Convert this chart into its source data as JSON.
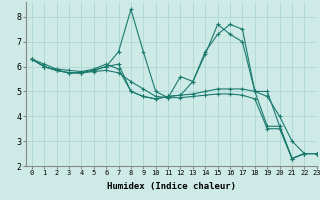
{
  "xlabel": "Humidex (Indice chaleur)",
  "ylabel": "",
  "bg_color": "#ceeae6",
  "grid_color": "#a8d5d0",
  "line_color": "#1a7a6e",
  "xlim": [
    -0.5,
    23
  ],
  "ylim": [
    2,
    8.6
  ],
  "xticks": [
    0,
    1,
    2,
    3,
    4,
    5,
    6,
    7,
    8,
    9,
    10,
    11,
    12,
    13,
    14,
    15,
    16,
    17,
    18,
    19,
    20,
    21,
    22,
    23
  ],
  "yticks": [
    2,
    3,
    4,
    5,
    6,
    7,
    8
  ],
  "series": [
    [
      6.3,
      6.1,
      5.9,
      5.85,
      5.8,
      5.9,
      6.1,
      5.9,
      5.0,
      4.8,
      4.7,
      4.8,
      4.85,
      4.9,
      5.0,
      5.1,
      5.1,
      5.1,
      5.0,
      4.8,
      4.0,
      3.0,
      2.5,
      2.5
    ],
    [
      6.3,
      6.0,
      5.85,
      5.75,
      5.75,
      5.85,
      6.0,
      6.6,
      8.3,
      6.6,
      5.0,
      4.75,
      5.6,
      5.4,
      6.6,
      7.3,
      7.7,
      7.5,
      5.0,
      5.0,
      3.6,
      2.3,
      2.5,
      2.5
    ],
    [
      6.3,
      6.0,
      5.85,
      5.75,
      5.75,
      5.85,
      6.0,
      6.1,
      5.0,
      4.8,
      4.7,
      4.8,
      4.85,
      5.4,
      6.5,
      7.7,
      7.3,
      7.0,
      5.0,
      3.6,
      3.6,
      2.3,
      2.5,
      2.5
    ],
    [
      6.3,
      6.0,
      5.85,
      5.75,
      5.75,
      5.8,
      5.85,
      5.75,
      5.4,
      5.1,
      4.8,
      4.75,
      4.75,
      4.8,
      4.85,
      4.9,
      4.9,
      4.85,
      4.7,
      3.5,
      3.5,
      2.3,
      2.5,
      2.5
    ]
  ]
}
